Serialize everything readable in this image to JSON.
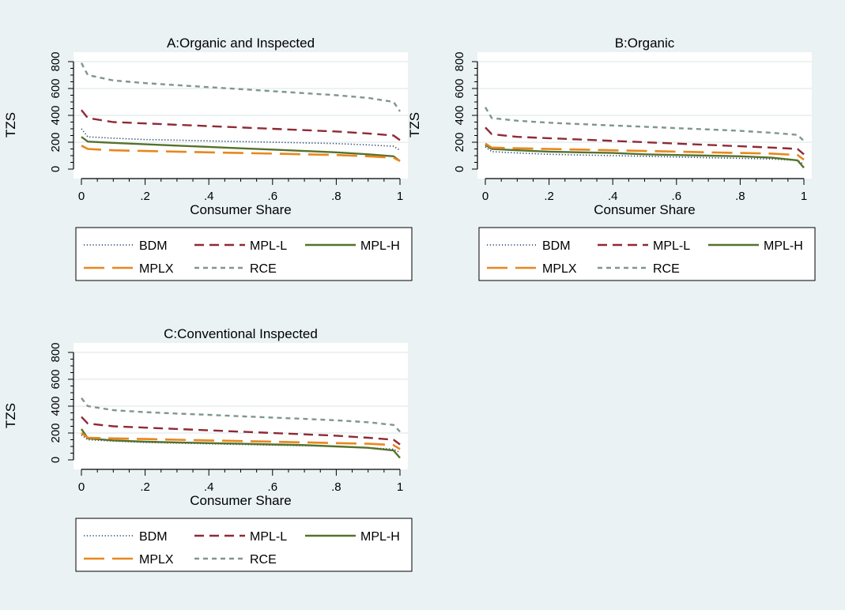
{
  "chart_data": [
    {
      "type": "line",
      "title": "A:Organic and Inspected",
      "xlabel": "Consumer Share",
      "ylabel": "TZS",
      "xlim": [
        0,
        1
      ],
      "ylim": [
        0,
        800
      ],
      "x_ticks": [
        "0",
        ".2",
        ".4",
        ".6",
        ".8",
        "1"
      ],
      "y_ticks": [
        "0",
        "200",
        "400",
        "600",
        "800"
      ],
      "grid": true,
      "x": [
        0,
        0.02,
        0.1,
        0.2,
        0.3,
        0.4,
        0.5,
        0.6,
        0.7,
        0.8,
        0.9,
        0.98,
        1.0
      ],
      "series": [
        {
          "name": "BDM",
          "values": [
            300,
            240,
            230,
            220,
            215,
            210,
            205,
            200,
            195,
            190,
            180,
            170,
            140
          ]
        },
        {
          "name": "MPL-L",
          "values": [
            440,
            380,
            350,
            340,
            330,
            320,
            310,
            300,
            290,
            280,
            265,
            250,
            215
          ]
        },
        {
          "name": "MPL-H",
          "values": [
            240,
            205,
            195,
            185,
            175,
            165,
            155,
            145,
            135,
            125,
            110,
            95,
            60
          ]
        },
        {
          "name": "MPLX",
          "values": [
            175,
            150,
            140,
            135,
            130,
            125,
            120,
            115,
            110,
            105,
            95,
            85,
            60
          ]
        },
        {
          "name": "RCE",
          "values": [
            790,
            700,
            660,
            640,
            625,
            610,
            595,
            580,
            565,
            550,
            530,
            500,
            430
          ]
        }
      ],
      "legend": {
        "position": "bottom",
        "entries": [
          "BDM",
          "MPL-L",
          "MPL-H",
          "MPLX",
          "RCE"
        ]
      }
    },
    {
      "type": "line",
      "title": "B:Organic",
      "xlabel": "Consumer Share",
      "ylabel": "TZS",
      "xlim": [
        0,
        1
      ],
      "ylim": [
        0,
        800
      ],
      "x_ticks": [
        "0",
        ".2",
        ".4",
        ".6",
        ".8",
        "1"
      ],
      "y_ticks": [
        "0",
        "200",
        "400",
        "600",
        "800"
      ],
      "grid": true,
      "x": [
        0,
        0.02,
        0.1,
        0.2,
        0.3,
        0.4,
        0.5,
        0.6,
        0.7,
        0.8,
        0.9,
        0.98,
        1.0
      ],
      "series": [
        {
          "name": "BDM",
          "values": [
            165,
            130,
            120,
            110,
            105,
            100,
            95,
            90,
            85,
            80,
            75,
            65,
            35
          ]
        },
        {
          "name": "MPL-L",
          "values": [
            310,
            260,
            240,
            230,
            220,
            210,
            200,
            190,
            180,
            170,
            160,
            150,
            110
          ]
        },
        {
          "name": "MPL-H",
          "values": [
            180,
            150,
            140,
            130,
            125,
            120,
            110,
            105,
            100,
            95,
            85,
            65,
            10
          ]
        },
        {
          "name": "MPLX",
          "values": [
            190,
            160,
            155,
            150,
            145,
            140,
            135,
            130,
            125,
            120,
            115,
            105,
            70
          ]
        },
        {
          "name": "RCE",
          "values": [
            460,
            380,
            360,
            345,
            335,
            325,
            315,
            305,
            295,
            285,
            270,
            255,
            210
          ]
        }
      ],
      "legend": {
        "position": "bottom",
        "entries": [
          "BDM",
          "MPL-L",
          "MPL-H",
          "MPLX",
          "RCE"
        ]
      }
    },
    {
      "type": "line",
      "title": "C:Conventional Inspected",
      "xlabel": "Consumer Share",
      "ylabel": "TZS",
      "xlim": [
        0,
        1
      ],
      "ylim": [
        0,
        800
      ],
      "x_ticks": [
        "0",
        ".2",
        ".4",
        ".6",
        ".8",
        "1"
      ],
      "y_ticks": [
        "0",
        "200",
        "400",
        "600",
        "800"
      ],
      "grid": true,
      "x": [
        0,
        0.02,
        0.1,
        0.2,
        0.3,
        0.4,
        0.5,
        0.6,
        0.7,
        0.8,
        0.9,
        0.98,
        1.0
      ],
      "series": [
        {
          "name": "BDM",
          "values": [
            185,
            150,
            140,
            130,
            125,
            120,
            115,
            110,
            105,
            100,
            90,
            80,
            55
          ]
        },
        {
          "name": "MPL-L",
          "values": [
            320,
            270,
            250,
            240,
            230,
            220,
            210,
            200,
            190,
            180,
            165,
            150,
            115
          ]
        },
        {
          "name": "MPL-H",
          "values": [
            230,
            160,
            145,
            135,
            130,
            125,
            120,
            115,
            110,
            100,
            90,
            70,
            15
          ]
        },
        {
          "name": "MPLX",
          "values": [
            200,
            165,
            160,
            155,
            150,
            145,
            140,
            135,
            130,
            125,
            120,
            110,
            80
          ]
        },
        {
          "name": "RCE",
          "values": [
            460,
            400,
            370,
            355,
            345,
            335,
            325,
            315,
            305,
            295,
            280,
            260,
            210
          ]
        }
      ],
      "legend": {
        "position": "bottom",
        "entries": [
          "BDM",
          "MPL-L",
          "MPL-H",
          "MPLX",
          "RCE"
        ]
      }
    }
  ],
  "series_styles": {
    "BDM": {
      "color": "#1b3d6e",
      "dash": "1.2,2.6",
      "width": 1.6
    },
    "MPL-L": {
      "color": "#8e2a35",
      "dash": "12,7",
      "width": 2.4
    },
    "MPL-H": {
      "color": "#55722c",
      "dash": "",
      "width": 2.4
    },
    "MPLX": {
      "color": "#e8871e",
      "dash": "26,10",
      "width": 2.6
    },
    "RCE": {
      "color": "#7f9690",
      "dash": "6,5",
      "width": 2.4
    }
  },
  "colors": {
    "background": "#eaf2f3",
    "plot_area": "#ffffff",
    "grid": "#e2eaea",
    "axis": "#000000"
  }
}
